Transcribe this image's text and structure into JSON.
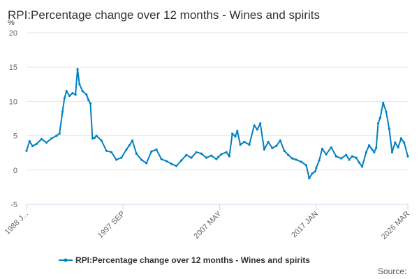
{
  "chart_data": {
    "type": "line",
    "title": "RPI:Percentage change over 12 months - Wines and spirits",
    "ylabel": "%",
    "xlabel": "",
    "ylim": [
      -5,
      20
    ],
    "yticks": [
      20,
      15,
      10,
      5,
      0,
      -5
    ],
    "xlim": [
      1988.0,
      2026.17
    ],
    "xticks": [
      {
        "label": "1988 J...",
        "value": 1988.0
      },
      {
        "label": "1997 SEP",
        "value": 1997.67
      },
      {
        "label": "2007 MAY",
        "value": 2007.33
      },
      {
        "label": "2017 JAN",
        "value": 2017.0
      },
      {
        "label": "2026 MAR",
        "value": 2026.17
      }
    ],
    "grid": true,
    "legend_position": "bottom",
    "source_label": "Source:",
    "line_color": "#0080c0",
    "series": [
      {
        "name": "RPI:Percentage change over 12 months - Wines and spirits",
        "x": [
          1988.0,
          1988.3,
          1988.6,
          1989.0,
          1989.5,
          1990.0,
          1990.5,
          1991.0,
          1991.3,
          1991.6,
          1991.8,
          1992.0,
          1992.3,
          1992.6,
          1992.9,
          1993.1,
          1993.3,
          1993.6,
          1994.0,
          1994.2,
          1994.4,
          1994.6,
          1994.8,
          1995.0,
          1995.5,
          1996.0,
          1996.5,
          1997.0,
          1997.5,
          1998.0,
          1998.3,
          1998.6,
          1999.0,
          1999.5,
          2000.0,
          2000.5,
          2001.0,
          2001.5,
          2002.0,
          2002.5,
          2003.0,
          2003.5,
          2004.0,
          2004.5,
          2005.0,
          2005.5,
          2006.0,
          2006.5,
          2007.0,
          2007.2,
          2007.5,
          2008.0,
          2008.3,
          2008.6,
          2008.9,
          2009.1,
          2009.4,
          2009.8,
          2010.3,
          2010.8,
          2011.1,
          2011.4,
          2011.8,
          2012.2,
          2012.6,
          2013.0,
          2013.4,
          2013.8,
          2014.2,
          2014.6,
          2015.0,
          2015.5,
          2016.0,
          2016.3,
          2016.6,
          2016.9,
          2017.0,
          2017.3,
          2017.6,
          2018.0,
          2018.5,
          2019.0,
          2019.5,
          2020.0,
          2020.3,
          2020.6,
          2021.0,
          2021.3,
          2021.6,
          2022.0,
          2022.3,
          2022.6,
          2022.8,
          2023.0,
          2023.2,
          2023.4,
          2023.7,
          2024.0,
          2024.3,
          2024.6,
          2024.9,
          2025.2,
          2025.5,
          2025.8,
          2026.17
        ],
        "values": [
          2.8,
          4.2,
          3.5,
          3.8,
          4.5,
          4.0,
          4.6,
          5.0,
          5.3,
          8.5,
          10.5,
          11.5,
          10.8,
          11.2,
          11.0,
          14.7,
          12.5,
          11.5,
          11.0,
          10.2,
          9.7,
          4.6,
          4.7,
          5.0,
          4.3,
          2.8,
          2.6,
          1.5,
          1.8,
          3.0,
          3.6,
          4.3,
          2.4,
          1.5,
          1.0,
          2.7,
          3.0,
          1.6,
          1.3,
          0.9,
          0.6,
          1.4,
          2.2,
          1.8,
          2.6,
          2.4,
          1.8,
          2.1,
          1.6,
          1.9,
          2.3,
          2.6,
          2.0,
          5.3,
          4.9,
          5.7,
          3.7,
          4.1,
          3.7,
          6.5,
          5.9,
          6.8,
          3.0,
          4.1,
          3.2,
          3.5,
          4.3,
          2.8,
          2.2,
          1.7,
          1.5,
          1.2,
          0.7,
          -1.2,
          -0.5,
          -0.2,
          0.3,
          1.4,
          3.1,
          2.3,
          3.3,
          2.0,
          1.7,
          2.2,
          1.5,
          2.0,
          1.8,
          1.1,
          0.5,
          2.6,
          3.6,
          3.0,
          2.6,
          3.2,
          6.8,
          7.6,
          9.8,
          8.5,
          6.0,
          2.6,
          4.0,
          3.3,
          4.6,
          4.0,
          2.0
        ]
      }
    ]
  }
}
